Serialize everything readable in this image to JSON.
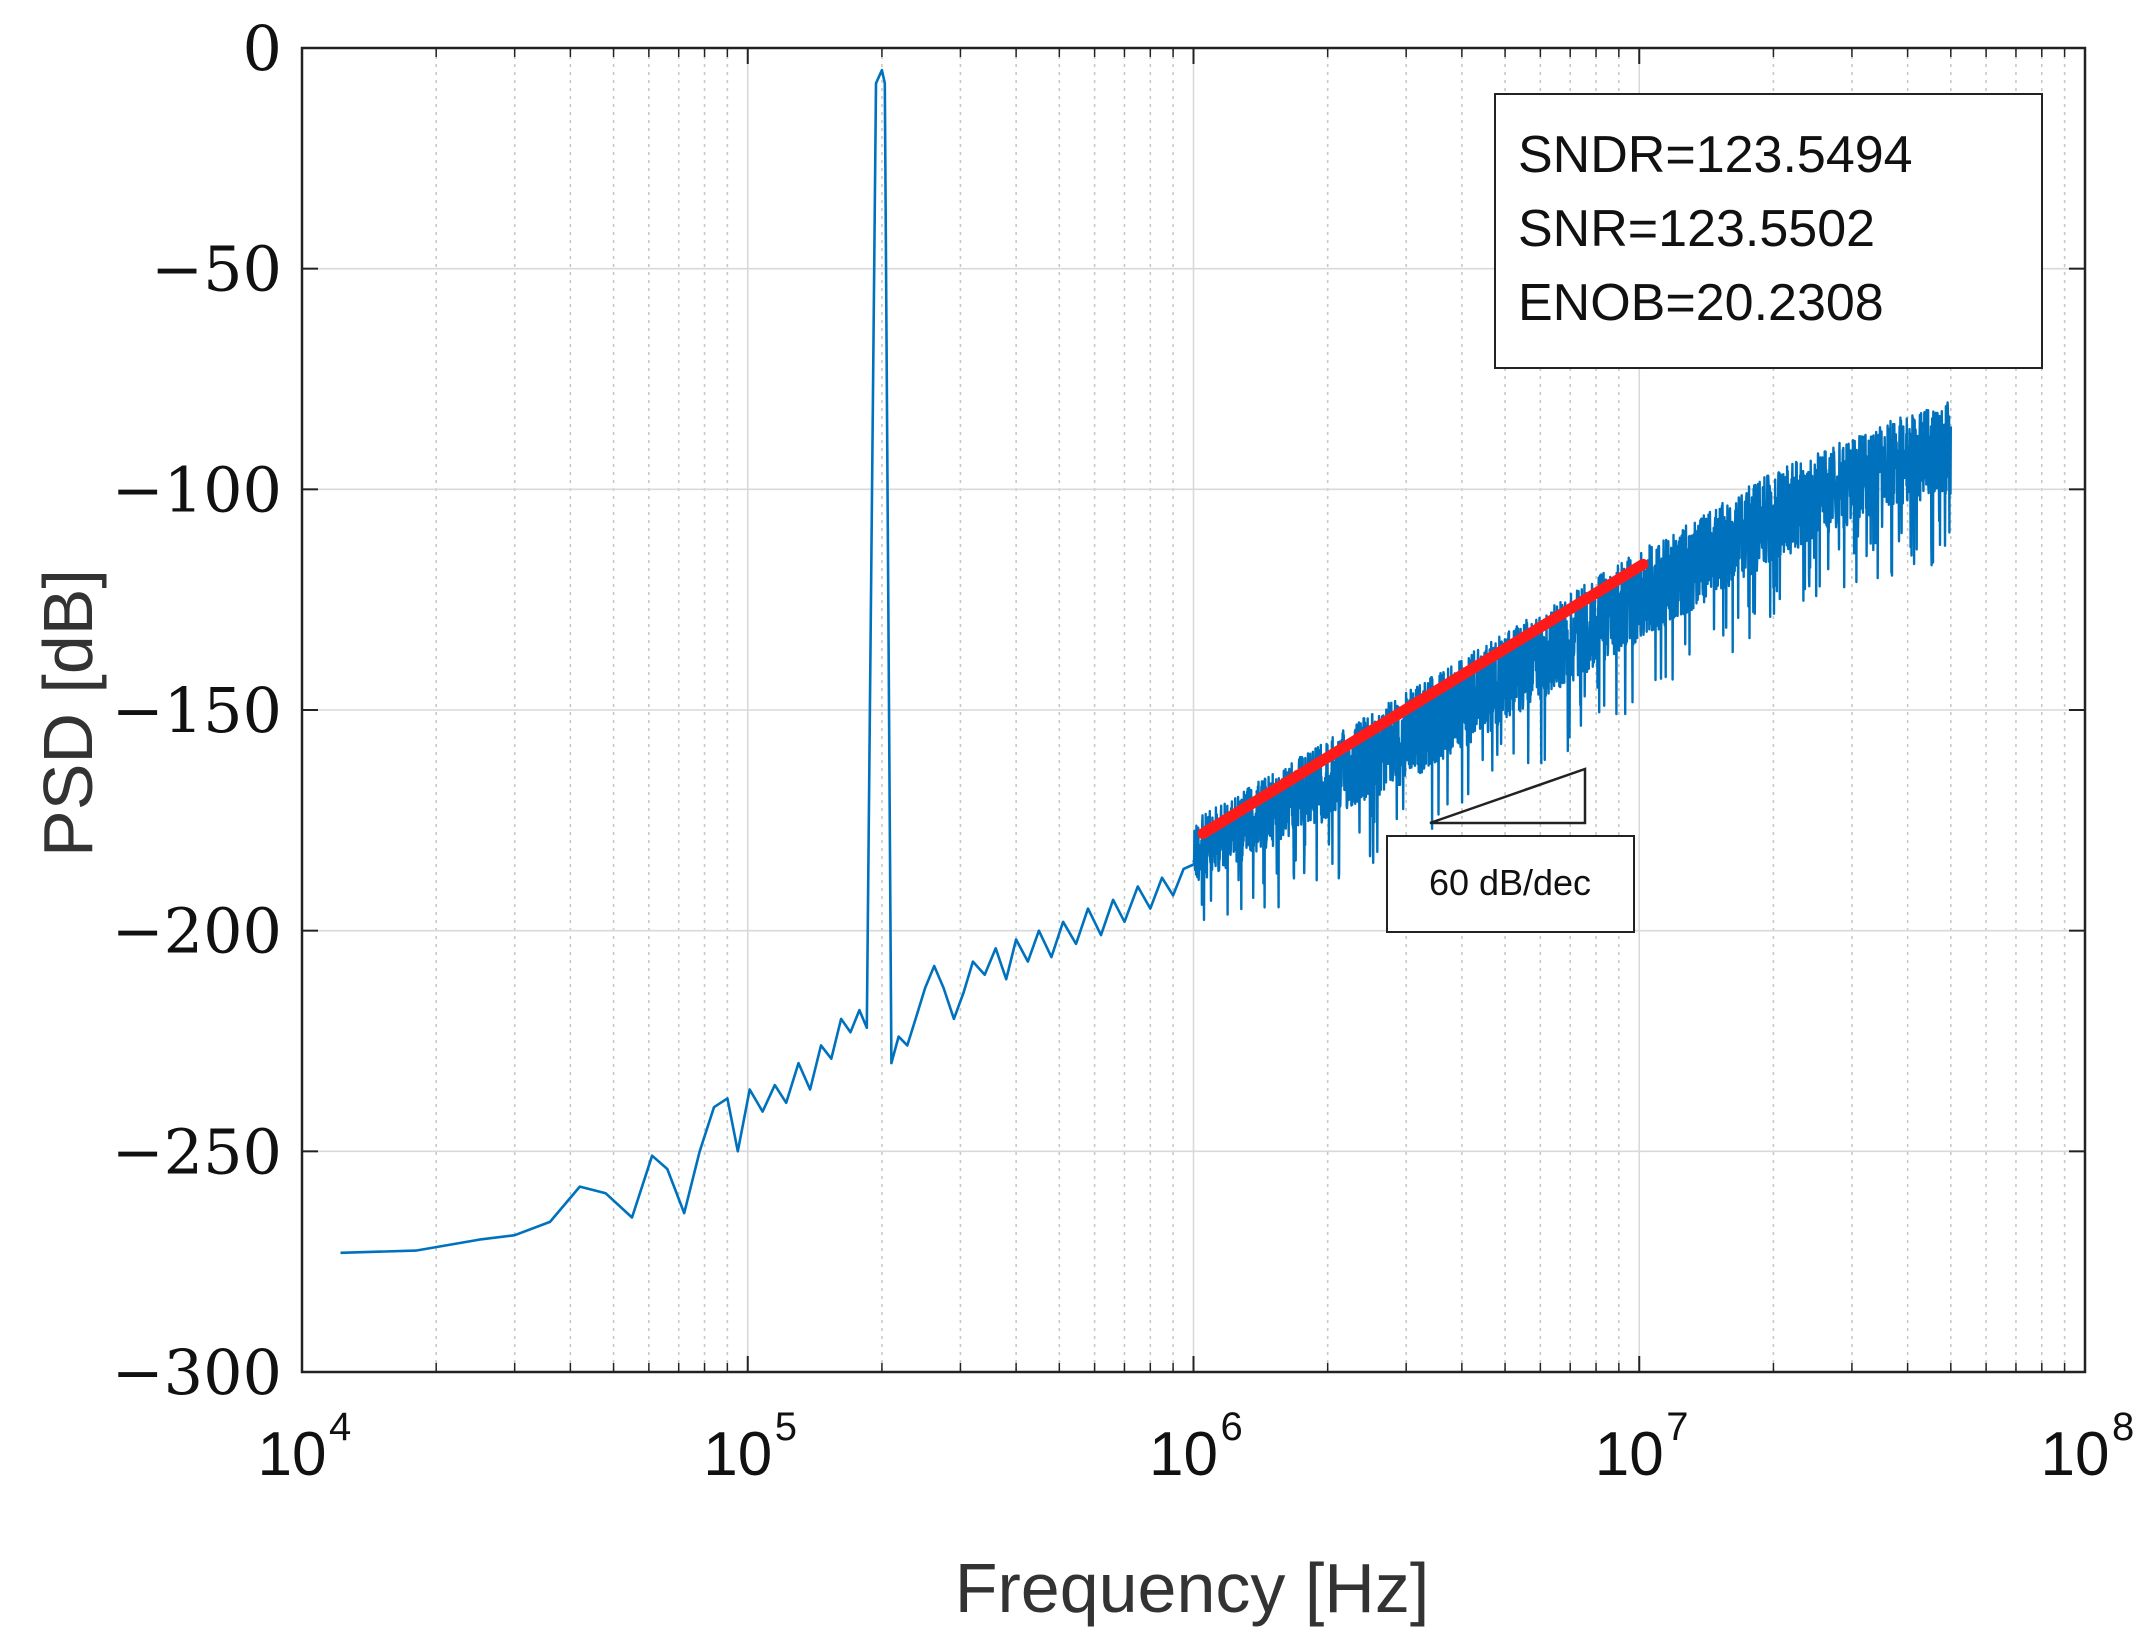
{
  "chart_data": {
    "type": "line",
    "title": "",
    "xlabel": "Frequency [Hz]",
    "ylabel": "PSD [dB]",
    "xscale": "log",
    "xlim": [
      10000,
      100000000
    ],
    "ylim": [
      -300,
      0
    ],
    "xticks": [
      {
        "value": 10000,
        "base": "10",
        "exp": "4"
      },
      {
        "value": 100000,
        "base": "10",
        "exp": "5"
      },
      {
        "value": 1000000,
        "base": "10",
        "exp": "6"
      },
      {
        "value": 10000000,
        "base": "10",
        "exp": "7"
      },
      {
        "value": 100000000,
        "base": "10",
        "exp": "8"
      }
    ],
    "yticks": [
      {
        "value": 0,
        "label": "0"
      },
      {
        "value": -50,
        "label": "−50"
      },
      {
        "value": -100,
        "label": "−100"
      },
      {
        "value": -150,
        "label": "−150"
      },
      {
        "value": -200,
        "label": "−200"
      },
      {
        "value": -250,
        "label": "−250"
      },
      {
        "value": -300,
        "label": "−300"
      }
    ],
    "grid": true,
    "series": [
      {
        "color": "#0072bd",
        "points": [
          [
            12200,
            -273
          ],
          [
            18000,
            -272.5
          ],
          [
            25000,
            -270
          ],
          [
            30000,
            -269
          ],
          [
            36000,
            -266
          ],
          [
            42000,
            -258
          ],
          [
            48000,
            -259.5
          ],
          [
            55000,
            -265
          ],
          [
            61000,
            -251
          ],
          [
            66000,
            -254
          ],
          [
            72000,
            -264
          ],
          [
            78000,
            -250
          ],
          [
            84000,
            -240
          ],
          [
            90000,
            -238
          ],
          [
            95000,
            -250
          ],
          [
            101000,
            -236
          ],
          [
            108000,
            -241
          ],
          [
            115000,
            -235
          ],
          [
            122000,
            -239
          ],
          [
            130000,
            -230
          ],
          [
            138000,
            -236
          ],
          [
            146000,
            -226
          ],
          [
            154000,
            -229
          ],
          [
            162000,
            -220
          ],
          [
            170000,
            -223
          ],
          [
            178000,
            -218
          ],
          [
            185000,
            -222
          ],
          [
            194000,
            -8
          ],
          [
            200000,
            -5
          ],
          [
            203000,
            -8
          ],
          [
            210000,
            -230
          ],
          [
            218000,
            -224
          ],
          [
            228000,
            -226
          ],
          [
            238000,
            -220
          ],
          [
            250000,
            -213
          ],
          [
            262000,
            -208
          ],
          [
            275000,
            -213
          ],
          [
            290000,
            -220
          ],
          [
            305000,
            -214
          ],
          [
            320000,
            -207
          ],
          [
            340000,
            -210
          ],
          [
            360000,
            -204
          ],
          [
            380000,
            -211
          ],
          [
            400000,
            -202
          ],
          [
            425000,
            -207
          ],
          [
            450000,
            -200
          ],
          [
            480000,
            -206
          ],
          [
            510000,
            -198
          ],
          [
            545000,
            -203
          ],
          [
            580000,
            -195
          ],
          [
            620000,
            -201
          ],
          [
            660000,
            -193
          ],
          [
            700000,
            -198
          ],
          [
            750000,
            -190
          ],
          [
            800000,
            -195
          ],
          [
            850000,
            -188
          ],
          [
            900000,
            -192
          ],
          [
            950000,
            -186
          ],
          [
            1000000,
            -185
          ]
        ]
      }
    ],
    "noise_band": {
      "color": "#0072bd",
      "upper": [
        [
          1000000,
          -175
        ],
        [
          3000000,
          -146
        ],
        [
          10000000,
          -114
        ],
        [
          20000000,
          -96
        ],
        [
          35000000,
          -85
        ],
        [
          50000000,
          -80
        ]
      ],
      "lower": [
        [
          1000000,
          -192
        ],
        [
          3000000,
          -170
        ],
        [
          10000000,
          -138
        ],
        [
          20000000,
          -120
        ],
        [
          35000000,
          -108
        ],
        [
          50000000,
          -105
        ]
      ],
      "fmax": 50000000
    },
    "fit_line": {
      "color": "#ff1a1a",
      "points": [
        [
          1050000,
          -178
        ],
        [
          10200000,
          -117
        ]
      ]
    },
    "annotations": {
      "metrics": [
        "SNDR=123.5494",
        "SNR=123.5502",
        "ENOB=20.2308"
      ],
      "slope_label": "60 dB/dec"
    }
  }
}
